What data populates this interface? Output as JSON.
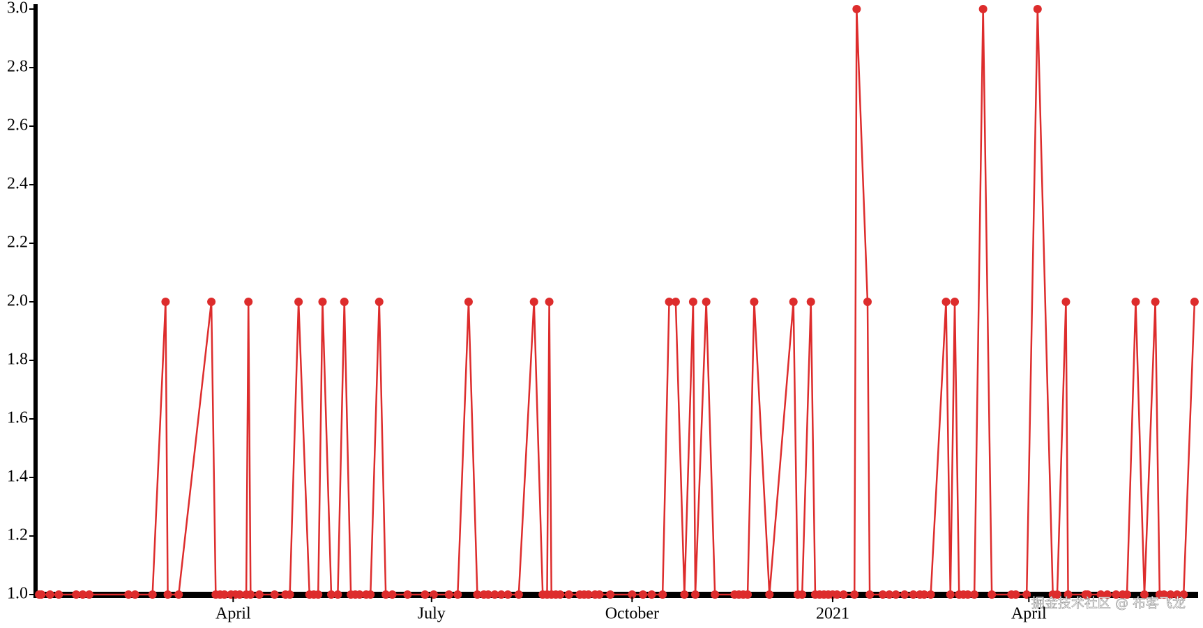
{
  "chart_data": {
    "type": "line",
    "xlim": [
      1,
      533
    ],
    "xticks": [
      {
        "value": 91,
        "label": "April"
      },
      {
        "value": 182,
        "label": "July"
      },
      {
        "value": 274,
        "label": "October"
      },
      {
        "value": 366,
        "label": "2021"
      },
      {
        "value": 456,
        "label": "April"
      }
    ],
    "ylim": [
      1,
      3
    ],
    "yticks": [
      {
        "value": 1,
        "label": "1.0"
      },
      1.2,
      1.4,
      1.6,
      1.8,
      {
        "value": 2,
        "label": "2.0"
      },
      2.2,
      2.4,
      2.6,
      2.8,
      {
        "value": 3,
        "label": "3.0"
      }
    ],
    "grid": false,
    "series": [
      {
        "color": "#dd2c2c",
        "x": [
          2,
          3,
          7,
          11,
          19,
          22,
          25,
          43,
          46,
          54,
          60,
          61,
          66,
          81,
          83,
          85,
          87,
          90,
          92,
          94,
          97,
          98,
          99,
          103,
          110,
          115,
          117,
          121,
          126,
          128,
          130,
          132,
          136,
          139,
          142,
          145,
          147,
          149,
          152,
          154,
          158,
          161,
          164,
          171,
          179,
          183,
          190,
          194,
          199,
          203,
          206,
          208,
          211,
          214,
          217,
          222,
          229,
          233,
          235,
          236,
          237,
          239,
          241,
          245,
          250,
          252,
          254,
          257,
          259,
          264,
          274,
          279,
          283,
          288,
          291,
          294,
          298,
          302,
          303,
          308,
          312,
          321,
          323,
          325,
          327,
          330,
          337,
          348,
          350,
          352,
          356,
          358,
          360,
          362,
          364,
          366,
          368,
          371,
          376,
          377,
          382,
          383,
          389,
          392,
          395,
          399,
          403,
          406,
          408,
          411,
          418,
          420,
          422,
          424,
          426,
          428,
          431,
          435,
          439,
          448,
          450,
          455,
          460,
          467,
          469,
          473,
          474,
          482,
          483,
          489,
          492,
          496,
          499,
          501,
          505,
          509,
          514,
          516,
          518,
          521,
          524,
          527,
          532
        ],
        "values": [
          1,
          1,
          1,
          1,
          1,
          1,
          1,
          1,
          1,
          1,
          2,
          1,
          1,
          2,
          1,
          1,
          1,
          1,
          1,
          1,
          1,
          2,
          1,
          1,
          1,
          1,
          1,
          2,
          1,
          1,
          1,
          2,
          1,
          1,
          2,
          1,
          1,
          1,
          1,
          1,
          2,
          1,
          1,
          1,
          1,
          1,
          1,
          1,
          2,
          1,
          1,
          1,
          1,
          1,
          1,
          1,
          2,
          1,
          1,
          2,
          1,
          1,
          1,
          1,
          1,
          1,
          1,
          1,
          1,
          1,
          1,
          1,
          1,
          1,
          2,
          2,
          1,
          2,
          1,
          2,
          1,
          1,
          1,
          1,
          1,
          2,
          1,
          2,
          1,
          1,
          2,
          1,
          1,
          1,
          1,
          1,
          1,
          1,
          1,
          3,
          2,
          1,
          1,
          1,
          1,
          1,
          1,
          1,
          1,
          1,
          2,
          1,
          2,
          1,
          1,
          1,
          1,
          3,
          1,
          1,
          1,
          1,
          3,
          1,
          1,
          2,
          1,
          1,
          1,
          1,
          1,
          1,
          1,
          1,
          2,
          1,
          2,
          1,
          1,
          1,
          1,
          1,
          2
        ]
      }
    ],
    "watermark": "掘金技术社区 @ 布客飞龙"
  }
}
